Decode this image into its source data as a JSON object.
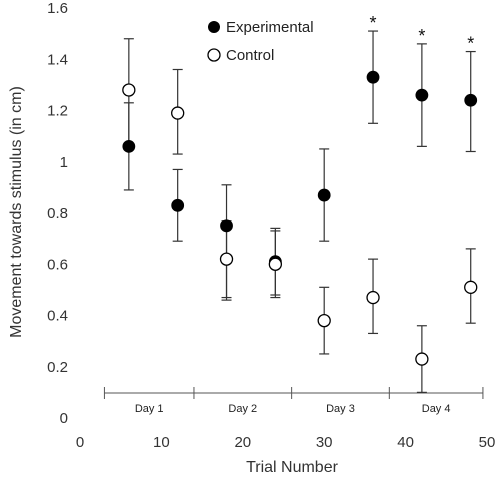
{
  "chart_data": {
    "type": "scatter",
    "title": "",
    "xlabel": "Trial Number",
    "ylabel": "Movement towards stimulus (in cm)",
    "xlim": [
      0,
      50
    ],
    "ylim": [
      0,
      1.6
    ],
    "x_ticks": [
      "0",
      "10",
      "20",
      "30",
      "40",
      "50"
    ],
    "y_ticks": [
      "0",
      "0.2",
      "0.4",
      "0.6",
      "0.8",
      "1",
      "1.2",
      "1.4",
      "1.6"
    ],
    "grid": false,
    "legend_position": "top-center",
    "series": [
      {
        "name": "Experimental",
        "marker": "filled-circle",
        "color": "#000000",
        "points": [
          {
            "x": 6,
            "y": 1.06,
            "err_low": 0.89,
            "err_high": 1.23
          },
          {
            "x": 12,
            "y": 0.83,
            "err_low": 0.69,
            "err_high": 0.97
          },
          {
            "x": 18,
            "y": 0.75,
            "err_low": 0.47,
            "err_high": 0.91
          },
          {
            "x": 24,
            "y": 0.61,
            "err_low": 0.48,
            "err_high": 0.73
          },
          {
            "x": 30,
            "y": 0.87,
            "err_low": 0.69,
            "err_high": 1.05
          },
          {
            "x": 36,
            "y": 1.33,
            "err_low": 1.15,
            "err_high": 1.51
          },
          {
            "x": 42,
            "y": 1.26,
            "err_low": 1.06,
            "err_high": 1.46
          },
          {
            "x": 48,
            "y": 1.24,
            "err_low": 1.04,
            "err_high": 1.43
          }
        ]
      },
      {
        "name": "Control",
        "marker": "open-circle",
        "color": "#000000",
        "points": [
          {
            "x": 6,
            "y": 1.28,
            "err_low": 1.07,
            "err_high": 1.48
          },
          {
            "x": 12,
            "y": 1.19,
            "err_low": 1.03,
            "err_high": 1.36
          },
          {
            "x": 18,
            "y": 0.62,
            "err_low": 0.46,
            "err_high": 0.77
          },
          {
            "x": 24,
            "y": 0.6,
            "err_low": 0.47,
            "err_high": 0.74
          },
          {
            "x": 30,
            "y": 0.38,
            "err_low": 0.25,
            "err_high": 0.51
          },
          {
            "x": 36,
            "y": 0.47,
            "err_low": 0.33,
            "err_high": 0.62
          },
          {
            "x": 42,
            "y": 0.23,
            "err_low": 0.1,
            "err_high": 0.36
          },
          {
            "x": 48,
            "y": 0.51,
            "err_low": 0.37,
            "err_high": 0.66
          }
        ]
      }
    ],
    "significance_markers": [
      {
        "x": 36,
        "label": "*"
      },
      {
        "x": 42,
        "label": "*"
      },
      {
        "x": 48,
        "label": "*"
      }
    ],
    "day_brackets": [
      {
        "label": "Day 1",
        "from": 3,
        "to": 14
      },
      {
        "label": "Day 2",
        "from": 14,
        "to": 26
      },
      {
        "label": "Day 3",
        "from": 26,
        "to": 38
      },
      {
        "label": "Day 4",
        "from": 38,
        "to": 49.5
      }
    ]
  }
}
